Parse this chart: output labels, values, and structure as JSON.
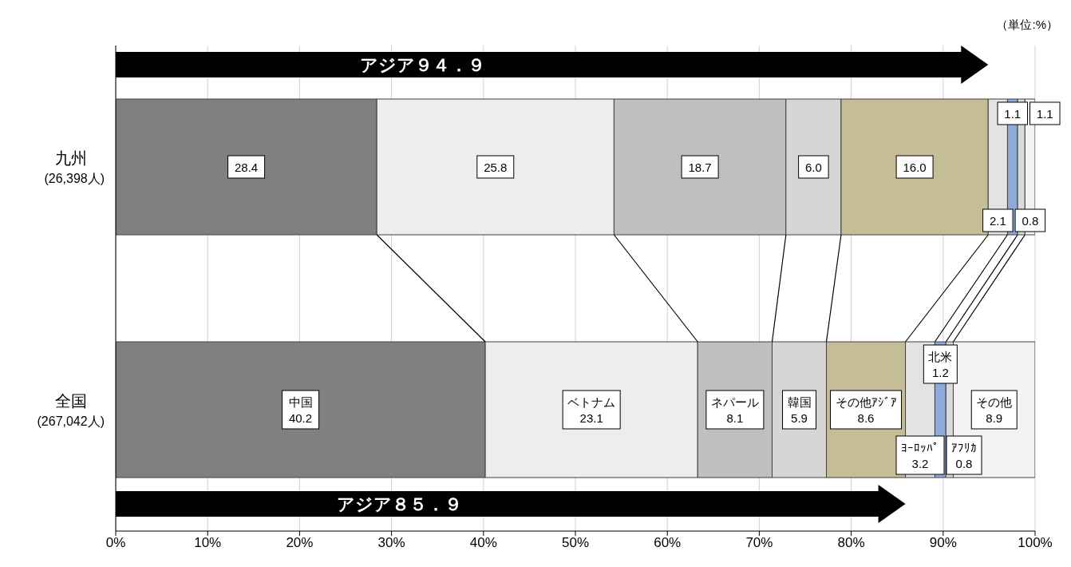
{
  "chart_data": {
    "type": "bar",
    "orientation": "horizontal",
    "stacked": true,
    "categories": [
      "九州\n(26,398人)",
      "全国\n(267,042人)"
    ],
    "series": [
      {
        "name": "中国",
        "color": "#808080",
        "values": [
          28.4,
          40.2
        ],
        "value_labels": [
          "28.4",
          "40.2"
        ]
      },
      {
        "name": "ベトナム",
        "color": "#ededed",
        "values": [
          25.8,
          23.1
        ],
        "value_labels": [
          "25.8",
          "23.1"
        ]
      },
      {
        "name": "ネパール",
        "color": "#bfbfbf",
        "values": [
          18.7,
          8.1
        ],
        "value_labels": [
          "18.7",
          "8.1"
        ]
      },
      {
        "name": "韓国",
        "color": "#d6d6d6",
        "values": [
          6.0,
          5.9
        ],
        "value_labels": [
          "6.0",
          "5.9"
        ]
      },
      {
        "name": "その他ｱｼﾞｱ",
        "color": "#c4bd97",
        "values": [
          16.0,
          8.6
        ],
        "value_labels": [
          "16.0",
          "8.6"
        ]
      },
      {
        "name": "ﾖｰﾛｯﾊﾟ",
        "color": "#e3e3e3",
        "values": [
          2.1,
          3.2
        ],
        "value_labels": [
          "2.1",
          "3.2"
        ]
      },
      {
        "name": "北米",
        "color": "#8eaadb",
        "values": [
          1.1,
          1.2
        ],
        "value_labels": [
          "1.1",
          "1.2"
        ]
      },
      {
        "name": "ｱﾌﾘｶ",
        "color": "#dadada",
        "values": [
          0.8,
          0.8
        ],
        "value_labels": [
          "0.8",
          "0.8"
        ]
      },
      {
        "name": "その他",
        "color": "#f2f2f2",
        "values": [
          1.1,
          8.9
        ],
        "value_labels": [
          "1.1",
          "8.9"
        ]
      }
    ],
    "xlim": [
      0,
      100
    ],
    "xticks": [
      {
        "value": 0,
        "label": "0%"
      },
      {
        "value": 10,
        "label": "10%"
      },
      {
        "value": 20,
        "label": "20%"
      },
      {
        "value": 30,
        "label": "30%"
      },
      {
        "value": 40,
        "label": "40%"
      },
      {
        "value": 50,
        "label": "50%"
      },
      {
        "value": 60,
        "label": "60%"
      },
      {
        "value": 70,
        "label": "70%"
      },
      {
        "value": 80,
        "label": "80%"
      },
      {
        "value": 90,
        "label": "90%"
      },
      {
        "value": 100,
        "label": "100%"
      }
    ],
    "grid": "x",
    "legend": false,
    "annotations": [
      "（単位:%）",
      "アジア９４．９",
      "アジア８５．９"
    ]
  }
}
